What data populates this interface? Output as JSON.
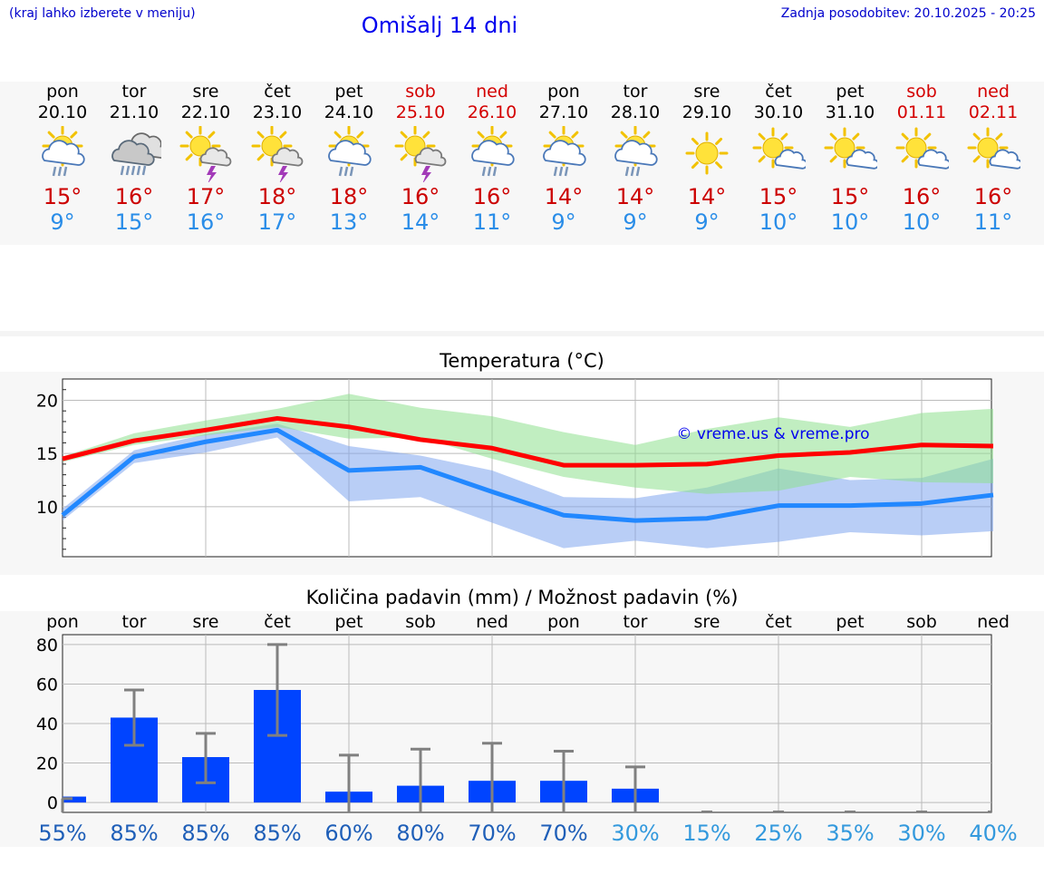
{
  "header": {
    "location_hint": "(kraj lahko izberete v meniju)",
    "title": "Omišalj 14 dni",
    "updated_label": "Zadnja posodobitev:",
    "updated_value": "20.10.2025 - 20:25"
  },
  "days": [
    {
      "name": "pon",
      "date": "20.10",
      "weekend": false,
      "icon": "sun-cloud-rain-icon",
      "max": "15°",
      "min": "9°"
    },
    {
      "name": "tor",
      "date": "21.10",
      "weekend": false,
      "icon": "cloud-heavy-rain-icon",
      "max": "16°",
      "min": "15°"
    },
    {
      "name": "sre",
      "date": "22.10",
      "weekend": false,
      "icon": "sun-thunder-icon",
      "max": "17°",
      "min": "16°"
    },
    {
      "name": "čet",
      "date": "23.10",
      "weekend": false,
      "icon": "sun-thunder-icon",
      "max": "18°",
      "min": "17°"
    },
    {
      "name": "pet",
      "date": "24.10",
      "weekend": false,
      "icon": "sun-cloud-rain-icon",
      "max": "18°",
      "min": "13°"
    },
    {
      "name": "sob",
      "date": "25.10",
      "weekend": true,
      "icon": "sun-thunder-icon",
      "max": "16°",
      "min": "14°"
    },
    {
      "name": "ned",
      "date": "26.10",
      "weekend": true,
      "icon": "sun-cloud-rain-icon",
      "max": "16°",
      "min": "11°"
    },
    {
      "name": "pon",
      "date": "27.10",
      "weekend": false,
      "icon": "sun-cloud-rain-icon",
      "max": "14°",
      "min": "9°"
    },
    {
      "name": "tor",
      "date": "28.10",
      "weekend": false,
      "icon": "sun-cloud-rain-icon",
      "max": "14°",
      "min": "9°"
    },
    {
      "name": "sre",
      "date": "29.10",
      "weekend": false,
      "icon": "sun-icon",
      "max": "14°",
      "min": "9°"
    },
    {
      "name": "čet",
      "date": "30.10",
      "weekend": false,
      "icon": "sun-small-cloud-icon",
      "max": "15°",
      "min": "10°"
    },
    {
      "name": "pet",
      "date": "31.10",
      "weekend": false,
      "icon": "sun-small-cloud-icon",
      "max": "15°",
      "min": "10°"
    },
    {
      "name": "sob",
      "date": "01.11",
      "weekend": true,
      "icon": "sun-small-cloud-icon",
      "max": "16°",
      "min": "10°"
    },
    {
      "name": "ned",
      "date": "02.11",
      "weekend": true,
      "icon": "sun-small-cloud-icon",
      "max": "16°",
      "min": "11°"
    }
  ],
  "colors": {
    "max_line": "#ff0000",
    "min_line": "#2288ff",
    "max_band": "#8ee08e",
    "min_band": "#7fa6ee",
    "bar": "#0044ff",
    "error_bar": "#808080",
    "weekend_text": "#d40000",
    "prob_high": "#1f5fb8",
    "prob_low": "#3399dd"
  },
  "chart_data": [
    {
      "type": "line",
      "title": "Temperatura (°C)",
      "watermark": "© vreme.us & vreme.pro",
      "ylim": [
        5.3,
        22
      ],
      "yticks": [
        10,
        15,
        20
      ],
      "grid": true,
      "series": [
        {
          "key": "max",
          "values": [
            14.5,
            16.2,
            17.2,
            18.3,
            17.5,
            16.3,
            15.5,
            13.9,
            13.9,
            14.0,
            14.8,
            15.1,
            15.8,
            15.7
          ]
        },
        {
          "key": "min",
          "values": [
            9.2,
            14.7,
            16.1,
            17.2,
            13.4,
            13.7,
            11.4,
            9.2,
            8.7,
            8.9,
            10.1,
            10.1,
            10.3,
            11.1
          ]
        }
      ],
      "max_band": {
        "upper": [
          14.7,
          16.9,
          18.1,
          19.2,
          20.6,
          19.3,
          18.5,
          17.0,
          15.8,
          17.3,
          18.4,
          17.5,
          18.8,
          19.2
        ],
        "lower": [
          14.2,
          15.8,
          16.7,
          17.5,
          16.4,
          16.5,
          14.5,
          12.8,
          11.8,
          11.2,
          11.5,
          12.8,
          12.3,
          12.2
        ]
      },
      "min_band": {
        "upper": [
          9.8,
          15.3,
          16.8,
          17.8,
          15.7,
          14.8,
          13.4,
          10.9,
          10.8,
          11.8,
          13.6,
          12.5,
          12.7,
          14.5
        ],
        "lower": [
          8.7,
          14.1,
          15.1,
          16.5,
          10.5,
          10.9,
          8.5,
          6.1,
          6.8,
          6.1,
          6.7,
          7.6,
          7.3,
          7.7
        ]
      }
    },
    {
      "type": "bar",
      "title": "Količina padavin (mm) / Možnost padavin (%)",
      "ylim": [
        -5,
        85
      ],
      "yticks": [
        0,
        20,
        40,
        60,
        80
      ],
      "grid": true,
      "categories": [
        "pon",
        "tor",
        "sre",
        "čet",
        "pet",
        "sob",
        "ned",
        "pon",
        "tor",
        "sre",
        "čet",
        "pet",
        "sob",
        "ned"
      ],
      "values": [
        3,
        43,
        23,
        57,
        5.5,
        8.5,
        11,
        11,
        7,
        0,
        0,
        0,
        0,
        0
      ],
      "error_low": [
        0,
        29,
        10,
        34,
        0,
        0,
        0,
        0,
        0,
        0,
        0,
        0,
        0,
        0
      ],
      "error_high": [
        2,
        57,
        35,
        80,
        24,
        27,
        30,
        26,
        18,
        0,
        0,
        0,
        0,
        0
      ],
      "probabilities": [
        "55%",
        "85%",
        "85%",
        "85%",
        "60%",
        "80%",
        "70%",
        "70%",
        "30%",
        "15%",
        "25%",
        "35%",
        "30%",
        "40%"
      ],
      "prob_level": [
        "high",
        "high",
        "high",
        "high",
        "high",
        "high",
        "high",
        "high",
        "low",
        "low",
        "low",
        "low",
        "low",
        "low"
      ]
    }
  ]
}
